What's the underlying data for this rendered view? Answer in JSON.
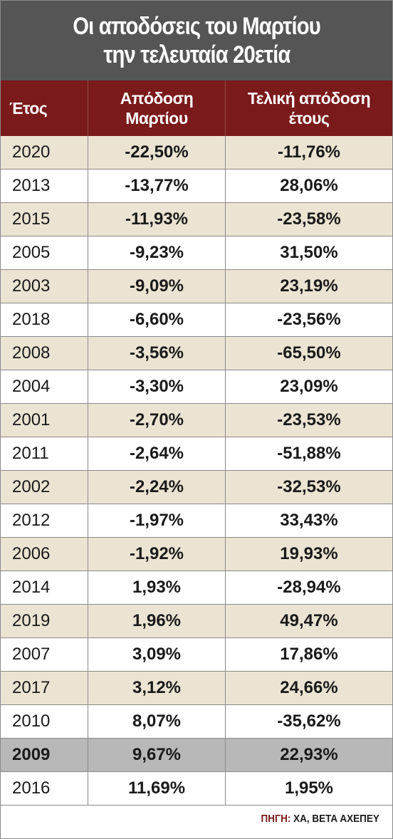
{
  "title_line1": "Οι αποδόσεις του Μαρτίου",
  "title_line2": "την τελευταία 20ετία",
  "columns": {
    "year": "Έτος",
    "march_line1": "Απόδοση",
    "march_line2": "Μαρτίου",
    "final_line1": "Τελική απόδοση",
    "final_line2": "έτους"
  },
  "source_label": "ΠΗΓΗ:",
  "source_text": "ΧΑ, ΒΕΤΑ ΑΧΕΠΕΥ",
  "colors": {
    "title_bg": "#555555",
    "header_bg": "#7a1a1b",
    "row_beige": "#ece4d3",
    "row_highlight": "#b8b8b8"
  },
  "chart_data": {
    "type": "table",
    "highlighted_year": "2009",
    "rows": [
      {
        "year": "2020",
        "march": "-22,50%",
        "final": "-11,76%"
      },
      {
        "year": "2013",
        "march": "-13,77%",
        "final": "28,06%"
      },
      {
        "year": "2015",
        "march": "-11,93%",
        "final": "-23,58%"
      },
      {
        "year": "2005",
        "march": "-9,23%",
        "final": "31,50%"
      },
      {
        "year": "2003",
        "march": "-9,09%",
        "final": "23,19%"
      },
      {
        "year": "2018",
        "march": "-6,60%",
        "final": "-23,56%"
      },
      {
        "year": "2008",
        "march": "-3,56%",
        "final": "-65,50%"
      },
      {
        "year": "2004",
        "march": "-3,30%",
        "final": "23,09%"
      },
      {
        "year": "2001",
        "march": "-2,70%",
        "final": "-23,53%"
      },
      {
        "year": "2011",
        "march": "-2,64%",
        "final": "-51,88%"
      },
      {
        "year": "2002",
        "march": "-2,24%",
        "final": "-32,53%"
      },
      {
        "year": "2012",
        "march": "-1,97%",
        "final": "33,43%"
      },
      {
        "year": "2006",
        "march": "-1,92%",
        "final": "19,93%"
      },
      {
        "year": "2014",
        "march": "1,93%",
        "final": "-28,94%"
      },
      {
        "year": "2019",
        "march": "1,96%",
        "final": "49,47%"
      },
      {
        "year": "2007",
        "march": "3,09%",
        "final": "17,86%"
      },
      {
        "year": "2017",
        "march": "3,12%",
        "final": "24,66%"
      },
      {
        "year": "2010",
        "march": "8,07%",
        "final": "-35,62%"
      },
      {
        "year": "2009",
        "march": "9,67%",
        "final": "22,93%"
      },
      {
        "year": "2016",
        "march": "11,69%",
        "final": "1,95%"
      }
    ]
  }
}
